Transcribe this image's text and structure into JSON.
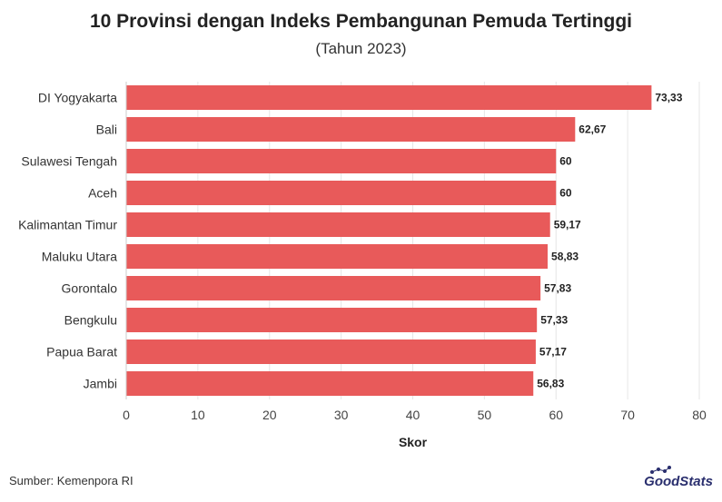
{
  "title": "10 Provinsi dengan Indeks Pembangunan Pemuda Tertinggi",
  "subtitle": "(Tahun 2023)",
  "source": "Sumber: Kemenpora RI",
  "logo": "GoodStats",
  "colors": {
    "bar": "#e85a5a",
    "grid": "#e6e6e6",
    "text": "#222222"
  },
  "chart_data": {
    "type": "bar",
    "orientation": "horizontal",
    "categories": [
      "DI Yogyakarta",
      "Bali",
      "Sulawesi Tengah",
      "Aceh",
      "Kalimantan Timur",
      "Maluku Utara",
      "Gorontalo",
      "Bengkulu",
      "Papua Barat",
      "Jambi"
    ],
    "values": [
      73.33,
      62.67,
      60,
      60,
      59.17,
      58.83,
      57.83,
      57.33,
      57.17,
      56.83
    ],
    "value_labels": [
      "73,33",
      "62,67",
      "60",
      "60",
      "59,17",
      "58,83",
      "57,83",
      "57,33",
      "57,17",
      "56,83"
    ],
    "xlabel": "Skor",
    "xlim": [
      0,
      80
    ],
    "xticks": [
      0,
      10,
      20,
      30,
      40,
      50,
      60,
      70,
      80
    ],
    "grid": true
  }
}
